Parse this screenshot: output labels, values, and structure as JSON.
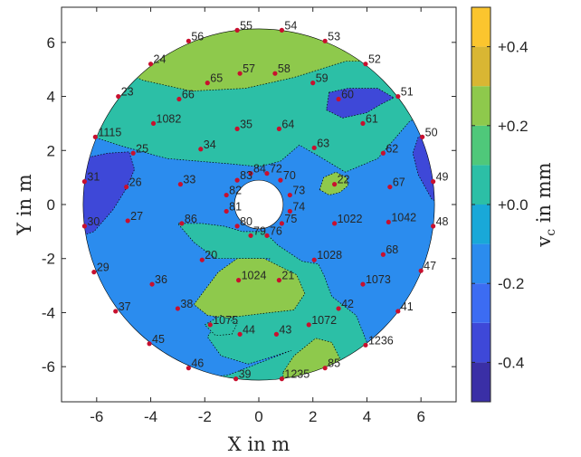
{
  "chart_data": {
    "type": "contour",
    "xlabel": "X in m",
    "ylabel": "Y in m",
    "xlim": [
      -7.3,
      7.3
    ],
    "ylim": [
      -7.3,
      7.3
    ],
    "x_ticks": [
      -6,
      -4,
      -2,
      0,
      2,
      4,
      6
    ],
    "y_ticks": [
      -6,
      -4,
      -2,
      0,
      2,
      4,
      6
    ],
    "x_tick_labels": [
      "-6",
      "-4",
      "-2",
      "0",
      "2",
      "4",
      "6"
    ],
    "y_tick_labels": [
      "-6",
      "-4",
      "-2",
      "0",
      "2",
      "4",
      "6"
    ],
    "domain": {
      "outer_radius_m": 6.5,
      "inner_radius_m": 0.9,
      "center": [
        0,
        0
      ]
    },
    "colorbar": {
      "label_main": "v",
      "label_sub": "c",
      "label_rest": " in mm",
      "range": [
        -0.5,
        0.5
      ],
      "levels": [
        -0.5,
        -0.4,
        -0.3,
        -0.2,
        -0.1,
        0.0,
        0.1,
        0.2,
        0.3,
        0.4,
        0.5
      ],
      "colors": [
        "#3a2fa6",
        "#3e48d8",
        "#3c6cf2",
        "#2b8cee",
        "#19a8d8",
        "#2cbfa6",
        "#4fc87a",
        "#8ec94c",
        "#d9b633",
        "#fbc52e",
        "#f9f81a"
      ],
      "ticks": [
        -0.4,
        -0.2,
        0.0,
        0.2,
        0.4
      ],
      "tick_labels": [
        "-0.4",
        "-0.2",
        "+0.0",
        "+0.2",
        "+0.4"
      ]
    },
    "points": [
      {
        "id": "55",
        "x": -0.8,
        "y": 6.45
      },
      {
        "id": "54",
        "x": 0.85,
        "y": 6.45
      },
      {
        "id": "56",
        "x": -2.6,
        "y": 6.05
      },
      {
        "id": "53",
        "x": 2.45,
        "y": 6.05
      },
      {
        "id": "24",
        "x": -4.0,
        "y": 5.2
      },
      {
        "id": "52",
        "x": 3.95,
        "y": 5.2
      },
      {
        "id": "57",
        "x": -0.7,
        "y": 4.85
      },
      {
        "id": "58",
        "x": 0.6,
        "y": 4.85
      },
      {
        "id": "65",
        "x": -1.9,
        "y": 4.5
      },
      {
        "id": "59",
        "x": 2.0,
        "y": 4.5
      },
      {
        "id": "23",
        "x": -5.2,
        "y": 4.0
      },
      {
        "id": "66",
        "x": -2.95,
        "y": 3.9
      },
      {
        "id": "60",
        "x": 2.95,
        "y": 3.9
      },
      {
        "id": "51",
        "x": 5.15,
        "y": 4.0
      },
      {
        "id": "1082",
        "x": -3.9,
        "y": 3.0
      },
      {
        "id": "61",
        "x": 3.85,
        "y": 3.0
      },
      {
        "id": "35",
        "x": -0.8,
        "y": 2.8
      },
      {
        "id": "64",
        "x": 0.75,
        "y": 2.8
      },
      {
        "id": "1115",
        "x": -6.05,
        "y": 2.5
      },
      {
        "id": "50",
        "x": 6.05,
        "y": 2.5
      },
      {
        "id": "34",
        "x": -2.15,
        "y": 2.05
      },
      {
        "id": "63",
        "x": 2.05,
        "y": 2.1
      },
      {
        "id": "25",
        "x": -4.65,
        "y": 1.9
      },
      {
        "id": "62",
        "x": 4.6,
        "y": 1.9
      },
      {
        "id": "84",
        "x": -0.3,
        "y": 1.15
      },
      {
        "id": "72",
        "x": 0.3,
        "y": 1.15
      },
      {
        "id": "83",
        "x": -0.8,
        "y": 0.9
      },
      {
        "id": "70",
        "x": 0.8,
        "y": 0.9
      },
      {
        "id": "31",
        "x": -6.45,
        "y": 0.85
      },
      {
        "id": "33",
        "x": -2.9,
        "y": 0.75
      },
      {
        "id": "22",
        "x": 2.8,
        "y": 0.75
      },
      {
        "id": "49",
        "x": 6.45,
        "y": 0.85
      },
      {
        "id": "26",
        "x": -4.9,
        "y": 0.65
      },
      {
        "id": "67",
        "x": 4.85,
        "y": 0.65
      },
      {
        "id": "82",
        "x": -1.2,
        "y": 0.35
      },
      {
        "id": "73",
        "x": 1.15,
        "y": 0.35
      },
      {
        "id": "81",
        "x": -1.2,
        "y": -0.25
      },
      {
        "id": "74",
        "x": 1.15,
        "y": -0.25
      },
      {
        "id": "30",
        "x": -6.45,
        "y": -0.8
      },
      {
        "id": "27",
        "x": -4.85,
        "y": -0.6
      },
      {
        "id": "86",
        "x": -2.85,
        "y": -0.7
      },
      {
        "id": "80",
        "x": -0.8,
        "y": -0.8
      },
      {
        "id": "75",
        "x": 0.85,
        "y": -0.7
      },
      {
        "id": "1022",
        "x": 2.8,
        "y": -0.7
      },
      {
        "id": "1042",
        "x": 4.8,
        "y": -0.65
      },
      {
        "id": "48",
        "x": 6.45,
        "y": -0.8
      },
      {
        "id": "79",
        "x": -0.3,
        "y": -1.15
      },
      {
        "id": "76",
        "x": 0.3,
        "y": -1.15
      },
      {
        "id": "20",
        "x": -2.1,
        "y": -2.05
      },
      {
        "id": "1028",
        "x": 2.05,
        "y": -2.05
      },
      {
        "id": "68",
        "x": 4.6,
        "y": -1.85
      },
      {
        "id": "29",
        "x": -6.1,
        "y": -2.5
      },
      {
        "id": "47",
        "x": 6.0,
        "y": -2.45
      },
      {
        "id": "1024",
        "x": -0.75,
        "y": -2.8
      },
      {
        "id": "21",
        "x": 0.75,
        "y": -2.8
      },
      {
        "id": "36",
        "x": -3.95,
        "y": -2.95
      },
      {
        "id": "1073",
        "x": 3.85,
        "y": -2.95
      },
      {
        "id": "38",
        "x": -3.0,
        "y": -3.85
      },
      {
        "id": "42",
        "x": 2.95,
        "y": -3.85
      },
      {
        "id": "37",
        "x": -5.3,
        "y": -3.95
      },
      {
        "id": "41",
        "x": 5.15,
        "y": -3.95
      },
      {
        "id": "1075",
        "x": -1.8,
        "y": -4.45
      },
      {
        "id": "1072",
        "x": 1.85,
        "y": -4.45
      },
      {
        "id": "44",
        "x": -0.7,
        "y": -4.8
      },
      {
        "id": "43",
        "x": 0.65,
        "y": -4.8
      },
      {
        "id": "45",
        "x": -4.05,
        "y": -5.15
      },
      {
        "id": "1236",
        "x": 3.95,
        "y": -5.2
      },
      {
        "id": "46",
        "x": -2.6,
        "y": -6.05
      },
      {
        "id": "85",
        "x": 2.45,
        "y": -6.05
      },
      {
        "id": "39",
        "x": -0.85,
        "y": -6.45
      },
      {
        "id": "1235",
        "x": 0.85,
        "y": -6.45
      }
    ],
    "regions_note_levels": {
      "background": 0.0,
      "yellow_top": 0.2,
      "yellow_center_bottom": 0.2,
      "yellow_lower_right": 0.2,
      "yellow_right_small": 0.2,
      "blue_main": -0.2,
      "dark_left": -0.4,
      "dark_right": -0.4,
      "dark_upper_right": -0.4,
      "cyan_bottom_center": 0.0
    }
  }
}
